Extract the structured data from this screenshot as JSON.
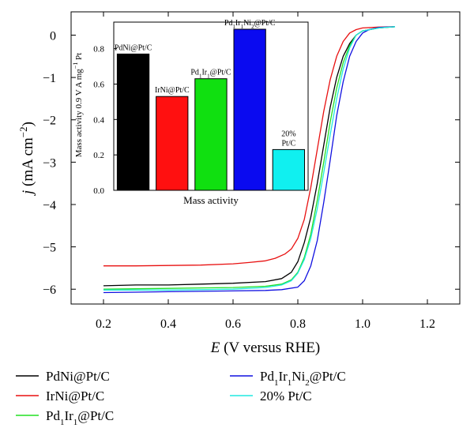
{
  "chart_data": [
    {
      "type": "line",
      "xlabel_symbol": "E",
      "xlabel_rest": " (V versus RHE)",
      "ylabel_symbol": "j",
      "ylabel_rest": " (mA cm",
      "ylabel_sup": "−2",
      "ylabel_close": ")",
      "xlim": [
        0.1,
        1.3
      ],
      "ylim": [
        -6.35,
        0.55
      ],
      "x_ticks": [
        0.2,
        0.4,
        0.6,
        0.8,
        1.0,
        1.2
      ],
      "x_tick_labels": [
        "0.2",
        "0.4",
        "0.6",
        "0.8",
        "1.0",
        "1.2"
      ],
      "y_ticks": [
        0,
        -1,
        -2,
        -3,
        -4,
        -5,
        -6
      ],
      "y_tick_labels": [
        "0",
        "−1",
        "−2",
        "−3",
        "−4",
        "−5",
        "−6"
      ],
      "grid": false,
      "legend_placement": "bottom",
      "series": [
        {
          "name": "PdNi@Pt/C",
          "name_parts": [
            [
              "PdNi@Pt/C",
              ""
            ]
          ],
          "color": "#000000",
          "x": [
            0.2,
            0.3,
            0.4,
            0.5,
            0.6,
            0.7,
            0.75,
            0.78,
            0.8,
            0.82,
            0.84,
            0.86,
            0.88,
            0.9,
            0.92,
            0.94,
            0.96,
            0.98,
            1.0,
            1.05,
            1.1
          ],
          "y": [
            -5.92,
            -5.9,
            -5.9,
            -5.88,
            -5.86,
            -5.82,
            -5.75,
            -5.6,
            -5.35,
            -4.9,
            -4.3,
            -3.5,
            -2.6,
            -1.7,
            -1.0,
            -0.5,
            -0.2,
            0.0,
            0.1,
            0.17,
            0.2
          ]
        },
        {
          "name": "IrNi@Pt/C",
          "name_parts": [
            [
              "IrNi@Pt/C",
              ""
            ]
          ],
          "color": "#e81010",
          "x": [
            0.2,
            0.3,
            0.4,
            0.5,
            0.6,
            0.65,
            0.7,
            0.73,
            0.76,
            0.78,
            0.8,
            0.82,
            0.84,
            0.86,
            0.88,
            0.9,
            0.92,
            0.94,
            0.96,
            0.98,
            1.0,
            1.05,
            1.1
          ],
          "y": [
            -5.45,
            -5.45,
            -5.44,
            -5.43,
            -5.4,
            -5.37,
            -5.33,
            -5.27,
            -5.17,
            -5.05,
            -4.8,
            -4.35,
            -3.6,
            -2.7,
            -1.8,
            -1.05,
            -0.5,
            -0.15,
            0.05,
            0.13,
            0.17,
            0.19,
            0.2
          ]
        },
        {
          "name": "Pd1Ir1@Pt/C",
          "name_parts": [
            [
              "Pd",
              ""
            ],
            [
              "1",
              "sub"
            ],
            [
              "Ir",
              ""
            ],
            [
              "1",
              "sub"
            ],
            [
              "@Pt/C",
              ""
            ]
          ],
          "color": "#22e022",
          "x": [
            0.2,
            0.3,
            0.4,
            0.5,
            0.6,
            0.7,
            0.75,
            0.78,
            0.8,
            0.82,
            0.84,
            0.86,
            0.88,
            0.9,
            0.92,
            0.94,
            0.96,
            0.98,
            1.0,
            1.05,
            1.1
          ],
          "y": [
            -6.0,
            -5.99,
            -5.98,
            -5.97,
            -5.96,
            -5.93,
            -5.88,
            -5.78,
            -5.6,
            -5.25,
            -4.7,
            -3.9,
            -3.0,
            -2.05,
            -1.25,
            -0.65,
            -0.25,
            0.0,
            0.1,
            0.17,
            0.2
          ]
        },
        {
          "name": "Pd1Ir1Ni2@Pt/C",
          "name_parts": [
            [
              "Pd",
              ""
            ],
            [
              "1",
              "sub"
            ],
            [
              "Ir",
              ""
            ],
            [
              "1",
              "sub"
            ],
            [
              "Ni",
              ""
            ],
            [
              "2",
              "sub"
            ],
            [
              "@Pt/C",
              ""
            ]
          ],
          "color": "#1010e0",
          "x": [
            0.2,
            0.3,
            0.4,
            0.5,
            0.6,
            0.7,
            0.75,
            0.8,
            0.82,
            0.84,
            0.86,
            0.88,
            0.9,
            0.92,
            0.94,
            0.96,
            0.98,
            1.0,
            1.02,
            1.05,
            1.1
          ],
          "y": [
            -6.08,
            -6.07,
            -6.06,
            -6.05,
            -6.04,
            -6.03,
            -6.01,
            -5.95,
            -5.8,
            -5.45,
            -4.85,
            -3.95,
            -2.95,
            -1.9,
            -1.1,
            -0.5,
            -0.15,
            0.05,
            0.13,
            0.18,
            0.2
          ]
        },
        {
          "name": "20% Pt/C",
          "name_parts": [
            [
              "20% Pt/C",
              ""
            ]
          ],
          "color": "#20e8e0",
          "x": [
            0.2,
            0.3,
            0.4,
            0.5,
            0.6,
            0.7,
            0.75,
            0.78,
            0.8,
            0.82,
            0.84,
            0.86,
            0.88,
            0.9,
            0.92,
            0.94,
            0.96,
            0.98,
            1.0,
            1.05,
            1.1
          ],
          "y": [
            -6.02,
            -6.02,
            -6.02,
            -6.01,
            -6.0,
            -5.96,
            -5.9,
            -5.8,
            -5.62,
            -5.3,
            -4.8,
            -4.1,
            -3.25,
            -2.35,
            -1.5,
            -0.8,
            -0.3,
            0.0,
            0.1,
            0.17,
            0.2
          ]
        }
      ]
    },
    {
      "type": "bar",
      "xlabel": "Mass activity",
      "ylabel": "Mass activity 0.9 V A mg",
      "ylabel_sup": "−1",
      "ylabel_tail": " Pt",
      "ylim": [
        0,
        0.95
      ],
      "y_ticks": [
        0,
        0.2,
        0.4,
        0.6,
        0.8
      ],
      "y_tick_labels": [
        "0.0",
        "0.2",
        "0.4",
        "0.6",
        "0.8"
      ],
      "grid": false,
      "categories": [
        "PdNi@Pt/C",
        "IrNi@Pt/C",
        "Pd1Ir1@Pt/C",
        "Pd1Ir1Ni2@Pt/C",
        "20% Pt/C"
      ],
      "values": [
        0.77,
        0.53,
        0.63,
        0.91,
        0.23
      ],
      "colors": [
        "#000000",
        "#ff1010",
        "#10e010",
        "#0a0af0",
        "#10f0f0"
      ],
      "bar_labels": [
        [
          [
            [
              "PdNi@Pt/C",
              ""
            ]
          ]
        ],
        [
          [
            [
              "IrNi@Pt/C",
              ""
            ]
          ]
        ],
        [
          [
            [
              "Pd",
              ""
            ],
            [
              "1",
              "sub"
            ],
            [
              "Ir",
              ""
            ],
            [
              "1",
              "sub"
            ],
            [
              "@Pt/C",
              ""
            ]
          ]
        ],
        [
          [
            [
              "Pd",
              ""
            ],
            [
              "1",
              "sub"
            ],
            [
              "Ir",
              ""
            ],
            [
              "1",
              "sub"
            ],
            [
              "Ni",
              ""
            ],
            [
              "2",
              "sub"
            ],
            [
              "@Pt/C",
              ""
            ]
          ]
        ],
        [
          [
            [
              "20%",
              ""
            ]
          ],
          [
            [
              "Pt/C",
              ""
            ]
          ]
        ]
      ]
    }
  ]
}
